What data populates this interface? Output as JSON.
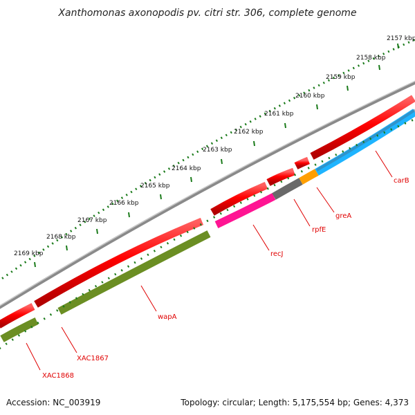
{
  "title": "Xanthomonas axonopodis pv. citri str. 306, complete genome",
  "footer": {
    "accession": "Accession: NC_003919",
    "summary": "Topology: circular; Length: 5,175,554 bp; Genes: 4,373"
  },
  "ruler": {
    "unit": "kbp",
    "ticks": [
      "2157 kbp",
      "2158 kbp",
      "2159 kbp",
      "2160 kbp",
      "2161 kbp",
      "2162 kbp",
      "2163 kbp",
      "2164 kbp",
      "2165 kbp",
      "2166 kbp",
      "2167 kbp",
      "2168 kbp",
      "2169 kbp"
    ]
  },
  "colors": {
    "backbone": "#8a8a8a",
    "cds_forward": "#ff0000",
    "wapA_xac": "#6b8e23",
    "recJ": "#ff1493",
    "rpfE": "#696969",
    "greA": "#ff9f00",
    "carB": "#1eb4ff",
    "ruler_dots": "#1a7a1a",
    "label": "#e00000"
  },
  "genes": [
    {
      "name": "carB",
      "label": "carB"
    },
    {
      "name": "greA",
      "label": "greA"
    },
    {
      "name": "rpfE",
      "label": "rpfE"
    },
    {
      "name": "recJ",
      "label": "recJ"
    },
    {
      "name": "wapA",
      "label": "wapA"
    },
    {
      "name": "XAC1867",
      "label": "XAC1867"
    },
    {
      "name": "XAC1868",
      "label": "XAC1868"
    }
  ]
}
